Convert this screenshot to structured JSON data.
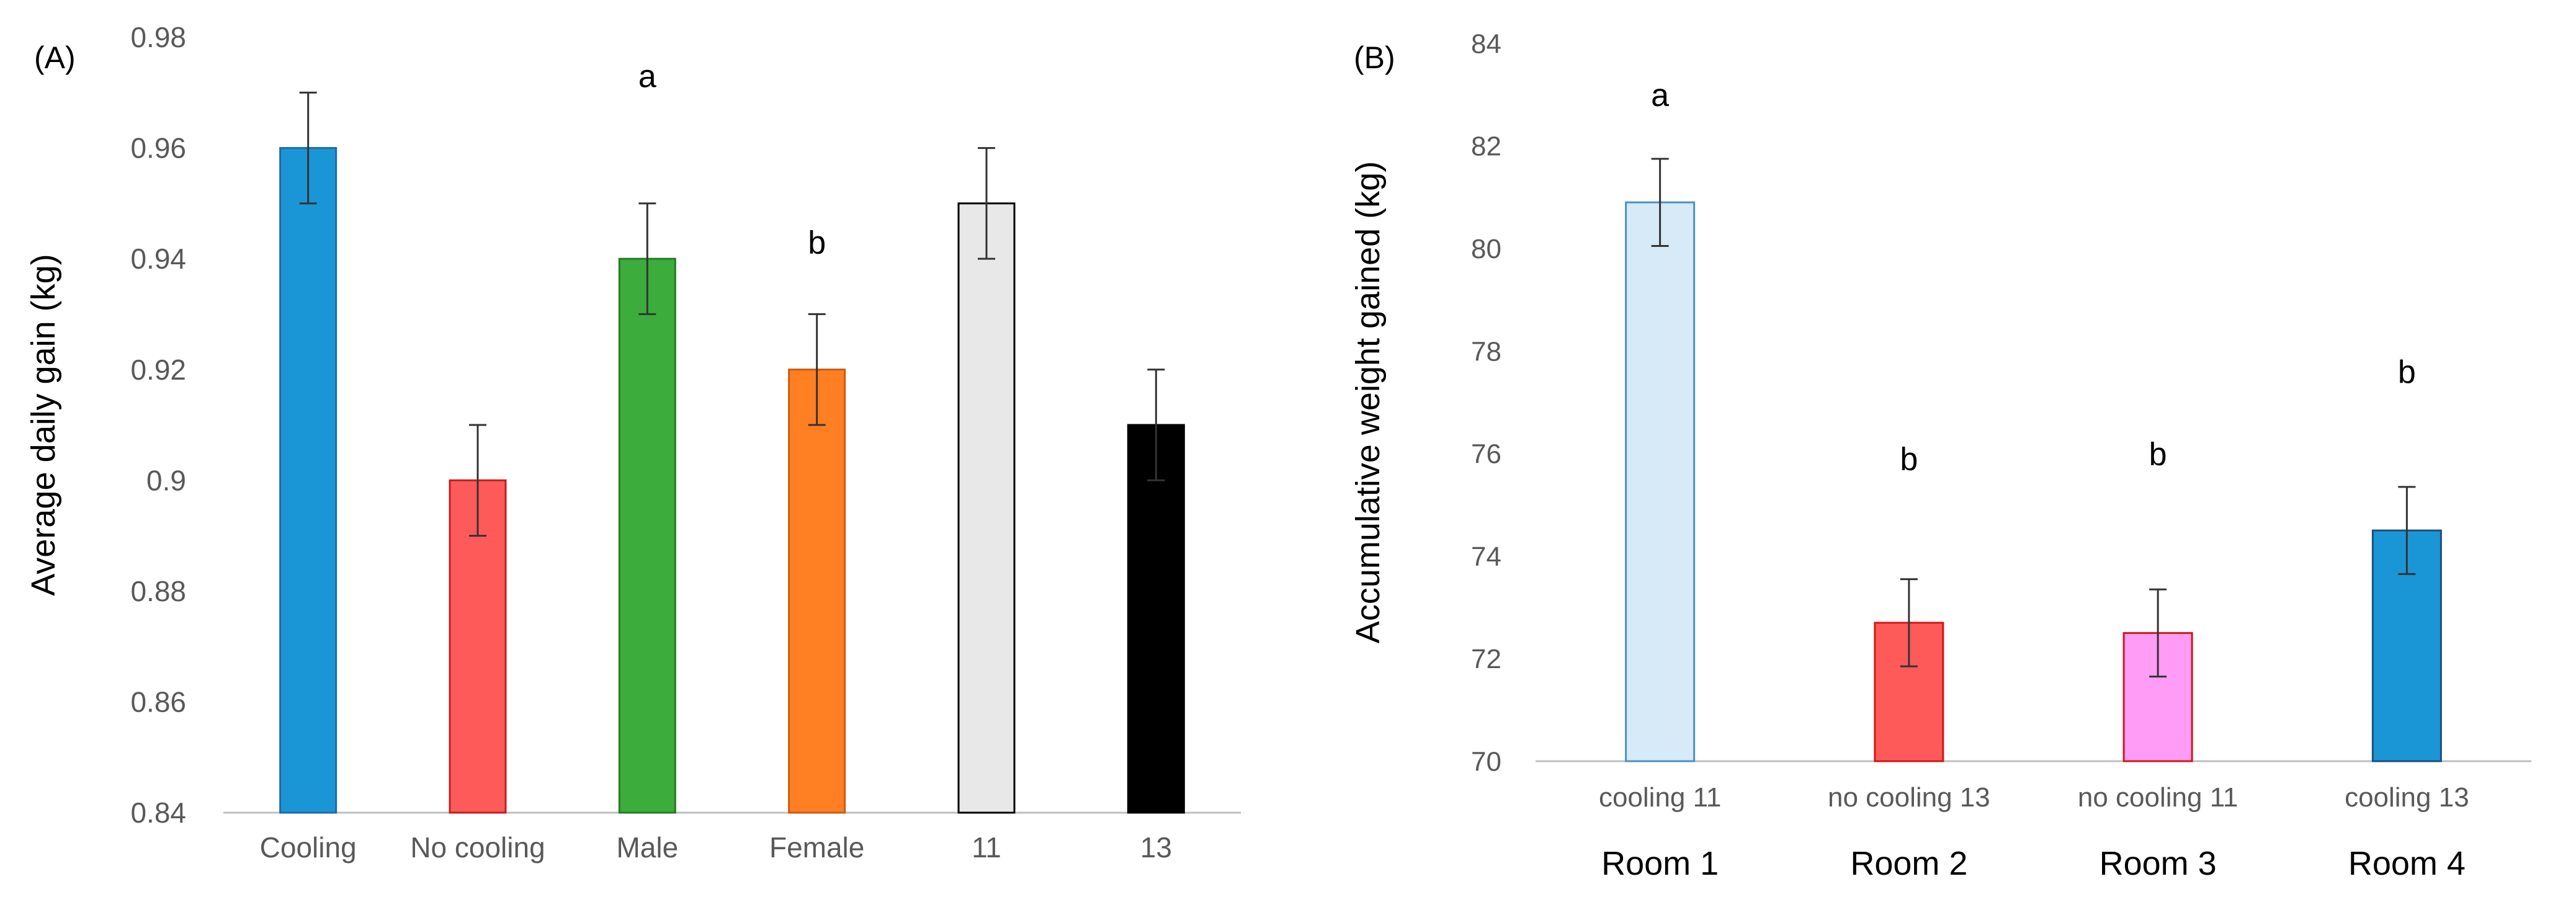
{
  "chart_data": [
    {
      "panel": "(A)",
      "type": "bar",
      "ylabel": "Average daily gain (kg)",
      "xlabel": "",
      "ylim": [
        0.84,
        0.98
      ],
      "yticks": [
        0.84,
        0.86,
        0.88,
        0.9,
        0.92,
        0.94,
        0.96,
        0.98
      ],
      "ytick_labels": [
        "0.84",
        "0.86",
        "0.88",
        "0.9",
        "0.92",
        "0.94",
        "0.96",
        "0.98"
      ],
      "grid": false,
      "categories": [
        "Cooling",
        "No cooling",
        "Male",
        "Female",
        "11",
        "13"
      ],
      "values": [
        0.96,
        0.9,
        0.94,
        0.92,
        0.95,
        0.91
      ],
      "errors": [
        0.01,
        0.01,
        0.01,
        0.01,
        0.01,
        0.01
      ],
      "colors": [
        "#1a96d6",
        "#ff5a5a",
        "#3cac3c",
        "#ff7f22",
        "#e8e8e8",
        "#000000"
      ],
      "edge_colors": [
        "#1f6aa8",
        "#c02020",
        "#267a26",
        "#cc5a10",
        "#000000",
        "#000000"
      ],
      "annotations": [
        {
          "text": "a",
          "x": "Male",
          "y": 0.973
        },
        {
          "text": "b",
          "x": "Female",
          "y": 0.943
        }
      ]
    },
    {
      "panel": "(B)",
      "type": "bar",
      "ylabel": "Accumulative weight gained (kg)",
      "xlabel": "",
      "ylim": [
        70,
        84
      ],
      "yticks": [
        70,
        72,
        74,
        76,
        78,
        80,
        82,
        84
      ],
      "ytick_labels": [
        "70",
        "72",
        "74",
        "76",
        "78",
        "80",
        "82",
        "84"
      ],
      "grid": false,
      "categories": [
        "cooling 11",
        "no cooling 13",
        "no cooling 11",
        "cooling 13"
      ],
      "group_labels": [
        "Room 1",
        "Room 2",
        "Room 3",
        "Room 4"
      ],
      "values": [
        80.9,
        72.7,
        72.5,
        74.5
      ],
      "errors": [
        0.85,
        0.85,
        0.85,
        0.85
      ],
      "colors": [
        "#d6eaf8",
        "#ff5a5a",
        "#ff9cf5",
        "#1a96d6"
      ],
      "edge_colors": [
        "#4a90c8",
        "#d01818",
        "#d01818",
        "#1f4e7a"
      ],
      "annotations": [
        {
          "text": "a",
          "x": "cooling 11",
          "y": 83.0
        },
        {
          "text": "b",
          "x": "no cooling 13",
          "y": 75.9
        },
        {
          "text": "b",
          "x": "no cooling 11",
          "y": 76.0
        },
        {
          "text": "b",
          "x": "cooling 13",
          "y": 77.6
        }
      ]
    }
  ]
}
